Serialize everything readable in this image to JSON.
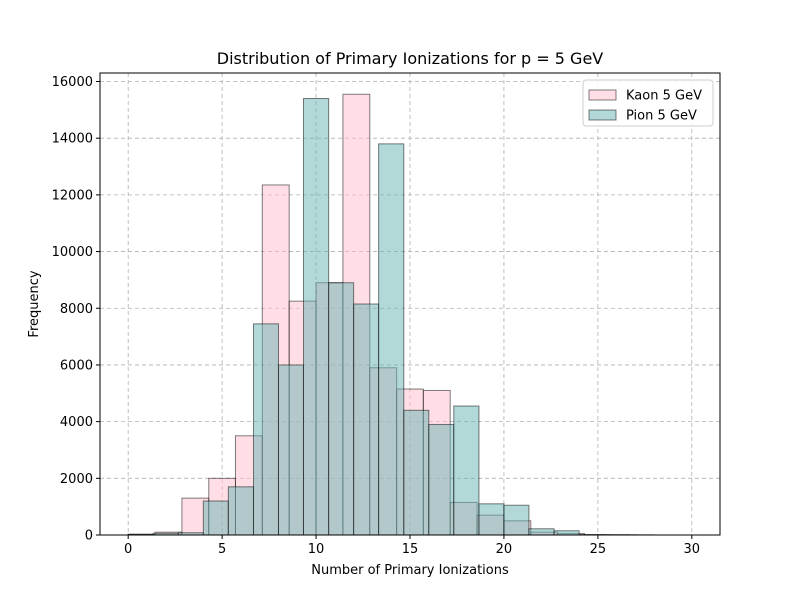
{
  "chart_data": {
    "type": "bar",
    "title": "Distribution of Primary Ionizations for p = 5 GeV",
    "xlabel": "Number of Primary Ionizations",
    "ylabel": "Frequency",
    "xlim": [
      -1.5,
      31.5
    ],
    "ylim": [
      0,
      16300
    ],
    "x_ticks": [
      0,
      5,
      10,
      15,
      20,
      25,
      30
    ],
    "y_ticks": [
      0,
      2000,
      4000,
      6000,
      8000,
      10000,
      12000,
      14000,
      16000
    ],
    "x_tick_labels": [
      "0",
      "5",
      "10",
      "15",
      "20",
      "25",
      "30"
    ],
    "y_tick_labels": [
      "0",
      "2000",
      "4000",
      "6000",
      "8000",
      "10000",
      "12000",
      "14000",
      "16000"
    ],
    "grid": true,
    "legend_position": "top-right",
    "series": [
      {
        "name": "Kaon 5 GeV",
        "color": "#ffc0cb",
        "bins": [
          {
            "x0": 0.0,
            "x1": 1.43,
            "value": 30
          },
          {
            "x0": 1.43,
            "x1": 2.86,
            "value": 100
          },
          {
            "x0": 2.86,
            "x1": 4.29,
            "value": 1300
          },
          {
            "x0": 4.29,
            "x1": 5.71,
            "value": 2000
          },
          {
            "x0": 5.71,
            "x1": 7.14,
            "value": 3500
          },
          {
            "x0": 7.14,
            "x1": 8.57,
            "value": 12350
          },
          {
            "x0": 8.57,
            "x1": 10.0,
            "value": 8250
          },
          {
            "x0": 10.0,
            "x1": 11.43,
            "value": 8900
          },
          {
            "x0": 11.43,
            "x1": 12.86,
            "value": 15550
          },
          {
            "x0": 12.86,
            "x1": 14.29,
            "value": 5900
          },
          {
            "x0": 14.29,
            "x1": 15.71,
            "value": 5150
          },
          {
            "x0": 15.71,
            "x1": 17.14,
            "value": 5100
          },
          {
            "x0": 17.14,
            "x1": 18.57,
            "value": 1150
          },
          {
            "x0": 18.57,
            "x1": 20.0,
            "value": 700
          },
          {
            "x0": 20.0,
            "x1": 21.43,
            "value": 500
          },
          {
            "x0": 21.43,
            "x1": 22.86,
            "value": 100
          },
          {
            "x0": 22.86,
            "x1": 24.29,
            "value": 50
          },
          {
            "x0": 24.29,
            "x1": 25.71,
            "value": 10
          },
          {
            "x0": 25.71,
            "x1": 27.14,
            "value": 5
          }
        ]
      },
      {
        "name": "Pion 5 GeV",
        "color": "#66b2b2",
        "bins": [
          {
            "x0": 0.0,
            "x1": 1.33,
            "value": 20
          },
          {
            "x0": 1.33,
            "x1": 2.67,
            "value": 60
          },
          {
            "x0": 2.67,
            "x1": 4.0,
            "value": 80
          },
          {
            "x0": 4.0,
            "x1": 5.33,
            "value": 1200
          },
          {
            "x0": 5.33,
            "x1": 6.67,
            "value": 1700
          },
          {
            "x0": 6.67,
            "x1": 8.0,
            "value": 7450
          },
          {
            "x0": 8.0,
            "x1": 9.33,
            "value": 6000
          },
          {
            "x0": 9.33,
            "x1": 10.67,
            "value": 15400
          },
          {
            "x0": 10.67,
            "x1": 12.0,
            "value": 8900
          },
          {
            "x0": 12.0,
            "x1": 13.33,
            "value": 8150
          },
          {
            "x0": 13.33,
            "x1": 14.67,
            "value": 13800
          },
          {
            "x0": 14.67,
            "x1": 16.0,
            "value": 4400
          },
          {
            "x0": 16.0,
            "x1": 17.33,
            "value": 3900
          },
          {
            "x0": 17.33,
            "x1": 18.67,
            "value": 4550
          },
          {
            "x0": 18.67,
            "x1": 20.0,
            "value": 1100
          },
          {
            "x0": 20.0,
            "x1": 21.33,
            "value": 1050
          },
          {
            "x0": 21.33,
            "x1": 22.67,
            "value": 220
          },
          {
            "x0": 22.67,
            "x1": 24.0,
            "value": 150
          },
          {
            "x0": 24.0,
            "x1": 25.33,
            "value": 15
          },
          {
            "x0": 25.33,
            "x1": 26.67,
            "value": 10
          },
          {
            "x0": 26.67,
            "x1": 28.0,
            "value": 5
          }
        ]
      }
    ]
  }
}
